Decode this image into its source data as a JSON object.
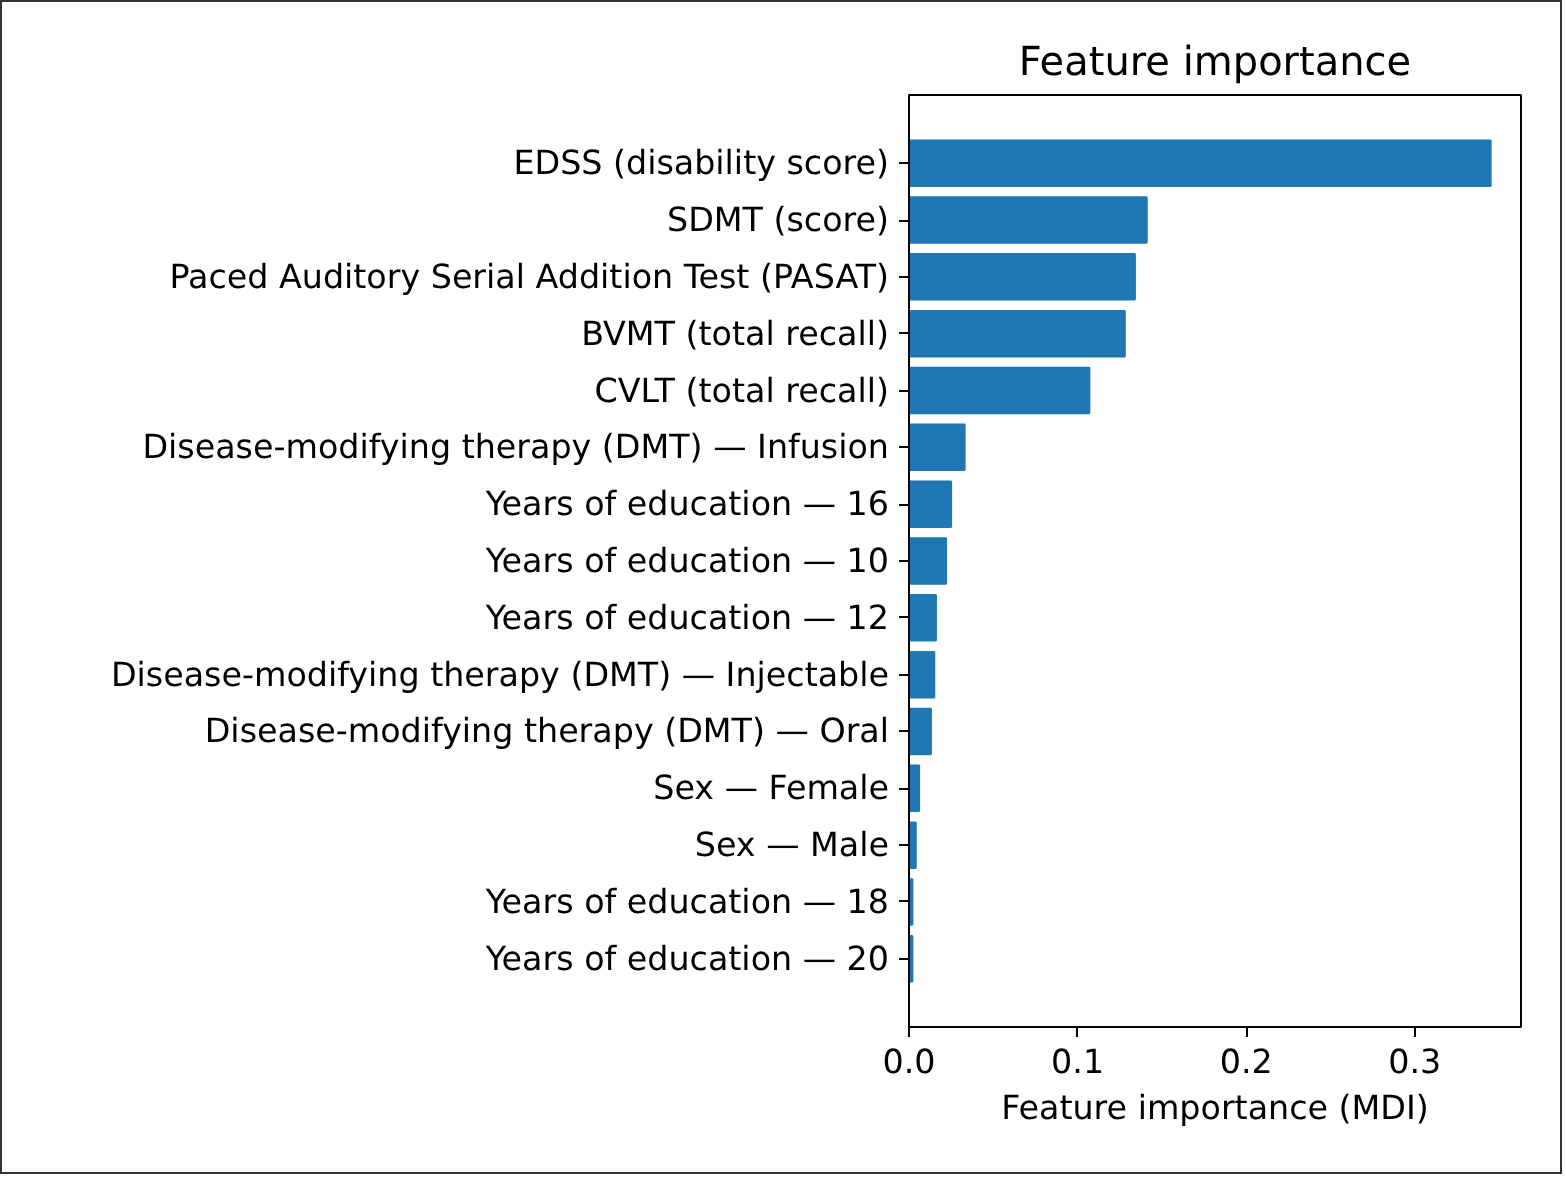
{
  "chart_data": {
    "type": "bar",
    "orientation": "horizontal",
    "title": "Feature importance",
    "xlabel": "Feature importance (MDI)",
    "categories": [
      "EDSS (disability score)",
      "SDMT (score)",
      "Paced Auditory Serial Addition Test (PASAT)",
      "BVMT (total recall)",
      "CVLT (total recall)",
      "Disease-modifying therapy (DMT) — Infusion",
      "Years of education — 16",
      "Years of education — 10",
      "Years of education — 12",
      "Disease-modifying therapy (DMT) — Injectable",
      "Disease-modifying therapy (DMT) — Oral",
      "Sex — Female",
      "Sex — Male",
      "Years of education — 18",
      "Years of education — 20"
    ],
    "values": [
      0.345,
      0.141,
      0.134,
      0.128,
      0.107,
      0.033,
      0.025,
      0.022,
      0.016,
      0.015,
      0.013,
      0.006,
      0.004,
      0.002,
      0.002
    ],
    "color": "#1f77b4",
    "xlim": [
      0,
      0.363
    ],
    "xticks": [
      {
        "value": 0,
        "label": "0.0"
      },
      0.1,
      0.2,
      0.3
    ],
    "grid": false
  }
}
